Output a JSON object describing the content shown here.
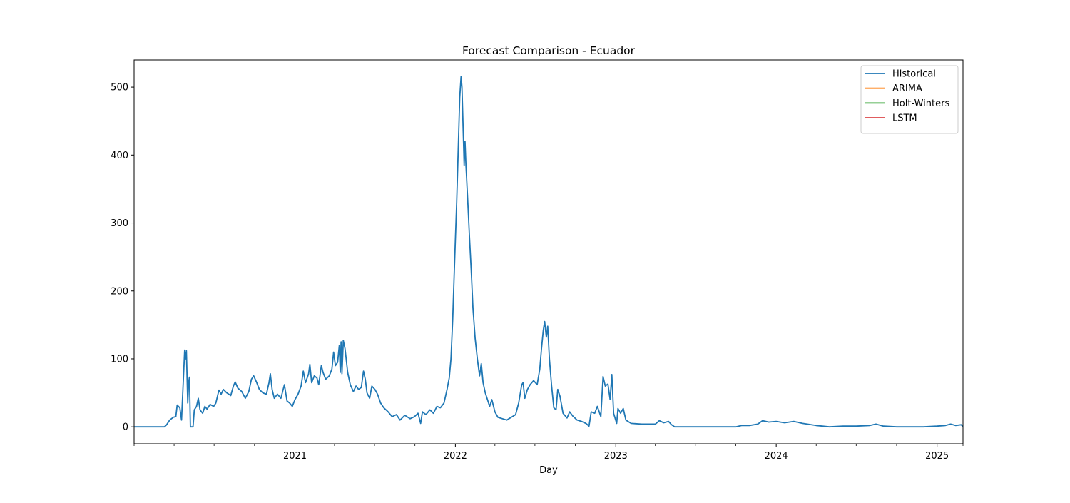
{
  "chart_data": {
    "type": "line",
    "title": "Forecast Comparison - Ecuador",
    "xlabel": "Day",
    "ylabel": "",
    "xlim": [
      "2020-01-01",
      "2025-03-01"
    ],
    "ylim": [
      -25,
      540
    ],
    "yticks": [
      0,
      100,
      200,
      300,
      400,
      500
    ],
    "xticks": [
      {
        "date": "2021-01-01",
        "label": "2021"
      },
      {
        "date": "2022-01-01",
        "label": "2022"
      },
      {
        "date": "2023-01-01",
        "label": "2023"
      },
      {
        "date": "2024-01-01",
        "label": "2024"
      },
      {
        "date": "2025-01-01",
        "label": "2025"
      }
    ],
    "minor_xticks": [
      "2020-01-01",
      "2020-04-01",
      "2020-07-01",
      "2020-10-01",
      "2021-04-01",
      "2021-07-01",
      "2021-10-01",
      "2022-04-01",
      "2022-07-01",
      "2022-10-01",
      "2023-04-01",
      "2023-07-01",
      "2023-10-01",
      "2024-04-01",
      "2024-07-01",
      "2024-10-01",
      "2025-03-01"
    ],
    "grid": false,
    "legend_position": "top-right",
    "series": [
      {
        "name": "Historical",
        "color": "#1f77b4",
        "points": [
          [
            "2020-01-01",
            0
          ],
          [
            "2020-03-10",
            0
          ],
          [
            "2020-03-15",
            3
          ],
          [
            "2020-03-22",
            10
          ],
          [
            "2020-03-30",
            14
          ],
          [
            "2020-04-05",
            15
          ],
          [
            "2020-04-08",
            32
          ],
          [
            "2020-04-14",
            28
          ],
          [
            "2020-04-18",
            10
          ],
          [
            "2020-04-25",
            113
          ],
          [
            "2020-04-27",
            100
          ],
          [
            "2020-04-29",
            112
          ],
          [
            "2020-05-02",
            35
          ],
          [
            "2020-05-04",
            65
          ],
          [
            "2020-05-06",
            73
          ],
          [
            "2020-05-08",
            0
          ],
          [
            "2020-05-14",
            0
          ],
          [
            "2020-05-17",
            25
          ],
          [
            "2020-05-22",
            30
          ],
          [
            "2020-05-26",
            42
          ],
          [
            "2020-05-30",
            25
          ],
          [
            "2020-06-05",
            20
          ],
          [
            "2020-06-10",
            30
          ],
          [
            "2020-06-15",
            26
          ],
          [
            "2020-06-22",
            33
          ],
          [
            "2020-06-30",
            30
          ],
          [
            "2020-07-05",
            35
          ],
          [
            "2020-07-12",
            54
          ],
          [
            "2020-07-17",
            48
          ],
          [
            "2020-07-22",
            55
          ],
          [
            "2020-07-30",
            50
          ],
          [
            "2020-08-08",
            46
          ],
          [
            "2020-08-14",
            60
          ],
          [
            "2020-08-18",
            66
          ],
          [
            "2020-08-24",
            57
          ],
          [
            "2020-09-02",
            52
          ],
          [
            "2020-09-10",
            42
          ],
          [
            "2020-09-18",
            52
          ],
          [
            "2020-09-24",
            70
          ],
          [
            "2020-09-29",
            75
          ],
          [
            "2020-10-06",
            65
          ],
          [
            "2020-10-12",
            55
          ],
          [
            "2020-10-20",
            50
          ],
          [
            "2020-10-28",
            48
          ],
          [
            "2020-11-03",
            65
          ],
          [
            "2020-11-06",
            78
          ],
          [
            "2020-11-10",
            55
          ],
          [
            "2020-11-15",
            42
          ],
          [
            "2020-11-22",
            48
          ],
          [
            "2020-11-30",
            42
          ],
          [
            "2020-12-08",
            62
          ],
          [
            "2020-12-14",
            38
          ],
          [
            "2020-12-20",
            35
          ],
          [
            "2020-12-26",
            30
          ],
          [
            "2021-01-01",
            40
          ],
          [
            "2021-01-08",
            48
          ],
          [
            "2021-01-15",
            60
          ],
          [
            "2021-01-20",
            82
          ],
          [
            "2021-01-25",
            65
          ],
          [
            "2021-02-01",
            78
          ],
          [
            "2021-02-04",
            92
          ],
          [
            "2021-02-08",
            65
          ],
          [
            "2021-02-14",
            75
          ],
          [
            "2021-02-20",
            72
          ],
          [
            "2021-02-24",
            62
          ],
          [
            "2021-03-02",
            90
          ],
          [
            "2021-03-06",
            80
          ],
          [
            "2021-03-12",
            70
          ],
          [
            "2021-03-20",
            75
          ],
          [
            "2021-03-26",
            85
          ],
          [
            "2021-03-30",
            110
          ],
          [
            "2021-04-03",
            90
          ],
          [
            "2021-04-08",
            95
          ],
          [
            "2021-04-12",
            120
          ],
          [
            "2021-04-14",
            80
          ],
          [
            "2021-04-16",
            125
          ],
          [
            "2021-04-18",
            78
          ],
          [
            "2021-04-21",
            127
          ],
          [
            "2021-04-25",
            115
          ],
          [
            "2021-05-01",
            80
          ],
          [
            "2021-05-07",
            62
          ],
          [
            "2021-05-14",
            52
          ],
          [
            "2021-05-20",
            60
          ],
          [
            "2021-05-26",
            55
          ],
          [
            "2021-06-01",
            58
          ],
          [
            "2021-06-06",
            82
          ],
          [
            "2021-06-10",
            70
          ],
          [
            "2021-06-14",
            50
          ],
          [
            "2021-06-20",
            42
          ],
          [
            "2021-06-25",
            60
          ],
          [
            "2021-07-02",
            55
          ],
          [
            "2021-07-08",
            48
          ],
          [
            "2021-07-15",
            35
          ],
          [
            "2021-07-22",
            28
          ],
          [
            "2021-08-01",
            22
          ],
          [
            "2021-08-10",
            15
          ],
          [
            "2021-08-20",
            18
          ],
          [
            "2021-08-28",
            10
          ],
          [
            "2021-09-08",
            17
          ],
          [
            "2021-09-20",
            12
          ],
          [
            "2021-09-30",
            15
          ],
          [
            "2021-10-08",
            20
          ],
          [
            "2021-10-14",
            5
          ],
          [
            "2021-10-18",
            22
          ],
          [
            "2021-10-26",
            18
          ],
          [
            "2021-11-04",
            25
          ],
          [
            "2021-11-12",
            20
          ],
          [
            "2021-11-20",
            30
          ],
          [
            "2021-11-28",
            28
          ],
          [
            "2021-12-06",
            35
          ],
          [
            "2021-12-13",
            55
          ],
          [
            "2021-12-18",
            72
          ],
          [
            "2021-12-22",
            100
          ],
          [
            "2021-12-26",
            160
          ],
          [
            "2021-12-30",
            240
          ],
          [
            "2022-01-04",
            330
          ],
          [
            "2022-01-08",
            420
          ],
          [
            "2022-01-11",
            485
          ],
          [
            "2022-01-14",
            516
          ],
          [
            "2022-01-16",
            500
          ],
          [
            "2022-01-19",
            430
          ],
          [
            "2022-01-21",
            385
          ],
          [
            "2022-01-23",
            420
          ],
          [
            "2022-01-25",
            385
          ],
          [
            "2022-01-27",
            360
          ],
          [
            "2022-01-30",
            320
          ],
          [
            "2022-02-02",
            280
          ],
          [
            "2022-02-06",
            230
          ],
          [
            "2022-02-10",
            175
          ],
          [
            "2022-02-15",
            130
          ],
          [
            "2022-02-20",
            100
          ],
          [
            "2022-02-25",
            75
          ],
          [
            "2022-03-01",
            93
          ],
          [
            "2022-03-05",
            65
          ],
          [
            "2022-03-10",
            50
          ],
          [
            "2022-03-15",
            40
          ],
          [
            "2022-03-20",
            30
          ],
          [
            "2022-03-25",
            40
          ],
          [
            "2022-04-01",
            22
          ],
          [
            "2022-04-08",
            14
          ],
          [
            "2022-04-18",
            12
          ],
          [
            "2022-04-28",
            10
          ],
          [
            "2022-05-08",
            14
          ],
          [
            "2022-05-18",
            18
          ],
          [
            "2022-05-25",
            35
          ],
          [
            "2022-06-01",
            62
          ],
          [
            "2022-06-04",
            65
          ],
          [
            "2022-06-08",
            42
          ],
          [
            "2022-06-14",
            55
          ],
          [
            "2022-06-20",
            62
          ],
          [
            "2022-06-28",
            68
          ],
          [
            "2022-07-06",
            62
          ],
          [
            "2022-07-12",
            85
          ],
          [
            "2022-07-16",
            115
          ],
          [
            "2022-07-20",
            142
          ],
          [
            "2022-07-23",
            155
          ],
          [
            "2022-07-27",
            132
          ],
          [
            "2022-07-30",
            148
          ],
          [
            "2022-08-03",
            100
          ],
          [
            "2022-08-08",
            60
          ],
          [
            "2022-08-13",
            28
          ],
          [
            "2022-08-18",
            25
          ],
          [
            "2022-08-22",
            55
          ],
          [
            "2022-08-27",
            45
          ],
          [
            "2022-09-03",
            20
          ],
          [
            "2022-09-12",
            13
          ],
          [
            "2022-09-18",
            22
          ],
          [
            "2022-09-25",
            16
          ],
          [
            "2022-10-05",
            10
          ],
          [
            "2022-10-15",
            8
          ],
          [
            "2022-10-25",
            5
          ],
          [
            "2022-11-01",
            1
          ],
          [
            "2022-11-06",
            22
          ],
          [
            "2022-11-14",
            20
          ],
          [
            "2022-11-20",
            30
          ],
          [
            "2022-11-28",
            15
          ],
          [
            "2022-12-03",
            74
          ],
          [
            "2022-12-08",
            60
          ],
          [
            "2022-12-14",
            63
          ],
          [
            "2022-12-19",
            40
          ],
          [
            "2022-12-23",
            77
          ],
          [
            "2022-12-27",
            20
          ],
          [
            "2023-01-03",
            5
          ],
          [
            "2023-01-06",
            27
          ],
          [
            "2023-01-12",
            20
          ],
          [
            "2023-01-18",
            27
          ],
          [
            "2023-01-24",
            10
          ],
          [
            "2023-02-05",
            5
          ],
          [
            "2023-03-01",
            4
          ],
          [
            "2023-04-01",
            4
          ],
          [
            "2023-04-10",
            9
          ],
          [
            "2023-04-20",
            6
          ],
          [
            "2023-05-01",
            8
          ],
          [
            "2023-05-08",
            3
          ],
          [
            "2023-05-15",
            0
          ],
          [
            "2023-06-01",
            0
          ],
          [
            "2023-10-01",
            0
          ],
          [
            "2023-10-15",
            2
          ],
          [
            "2023-11-01",
            2
          ],
          [
            "2023-11-20",
            4
          ],
          [
            "2023-12-01",
            9
          ],
          [
            "2023-12-15",
            7
          ],
          [
            "2024-01-01",
            8
          ],
          [
            "2024-01-20",
            6
          ],
          [
            "2024-02-10",
            8
          ],
          [
            "2024-03-01",
            5
          ],
          [
            "2024-04-01",
            2
          ],
          [
            "2024-05-01",
            0
          ],
          [
            "2024-06-01",
            1
          ],
          [
            "2024-07-01",
            1
          ],
          [
            "2024-08-01",
            2
          ],
          [
            "2024-08-15",
            4
          ],
          [
            "2024-09-01",
            1
          ],
          [
            "2024-10-01",
            0
          ],
          [
            "2024-11-01",
            0
          ],
          [
            "2024-12-01",
            0
          ],
          [
            "2025-01-01",
            1
          ],
          [
            "2025-01-20",
            2
          ],
          [
            "2025-02-01",
            4
          ],
          [
            "2025-02-12",
            2
          ],
          [
            "2025-02-25",
            3
          ],
          [
            "2025-03-01",
            0
          ]
        ]
      },
      {
        "name": "ARIMA",
        "color": "#ff7f0e",
        "points": []
      },
      {
        "name": "Holt-Winters",
        "color": "#2ca02c",
        "points": []
      },
      {
        "name": "LSTM",
        "color": "#d62728",
        "points": []
      }
    ]
  }
}
